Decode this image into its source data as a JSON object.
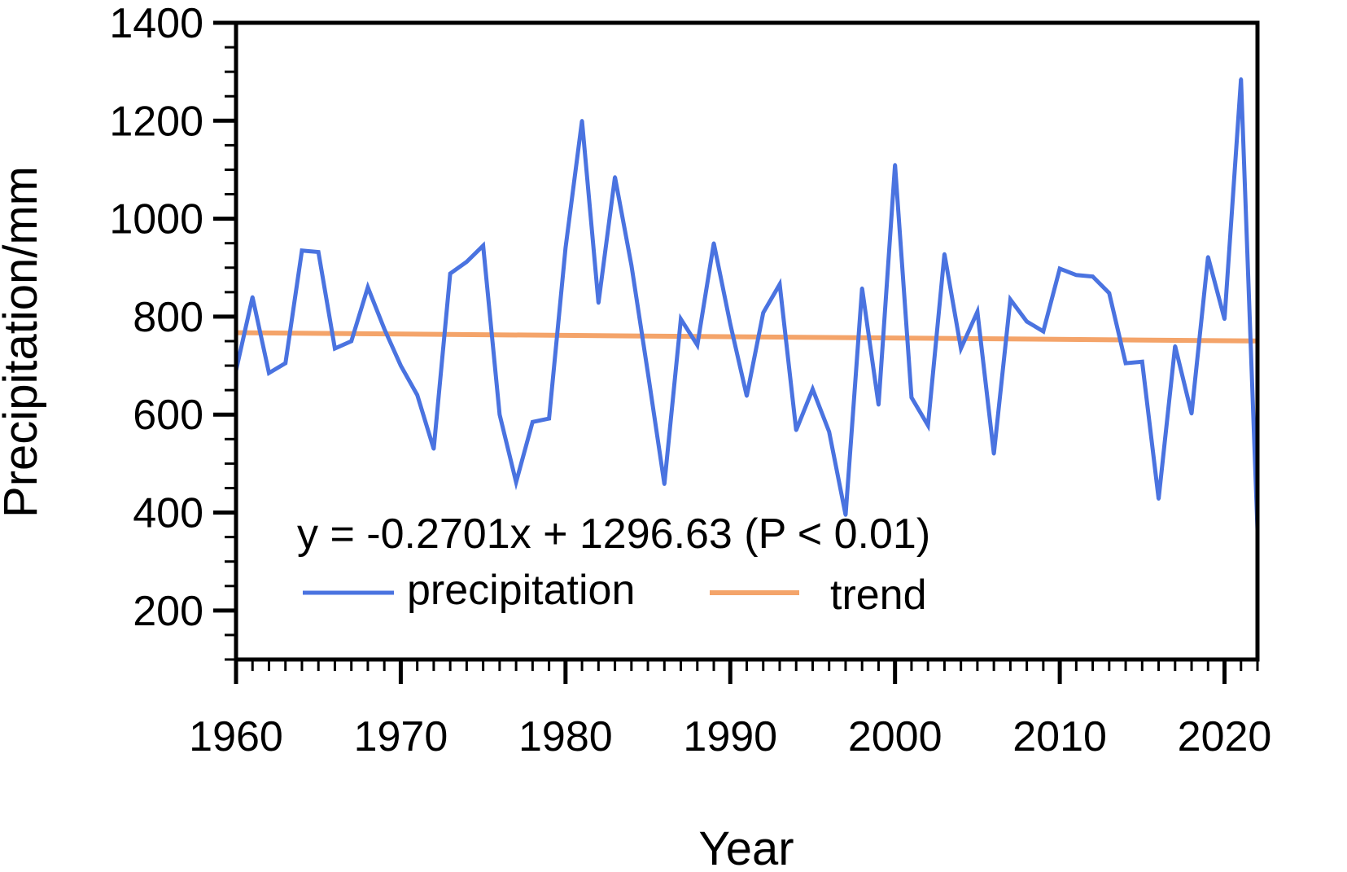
{
  "chart_data": {
    "type": "line",
    "xlabel": "Year",
    "ylabel": "Precipitation/mm",
    "xlim": [
      1960,
      2022
    ],
    "ylim": [
      100,
      1400
    ],
    "xticks": [
      1960,
      1970,
      1980,
      1990,
      2000,
      2010,
      2020
    ],
    "yticks": [
      200,
      400,
      600,
      800,
      1000,
      1200,
      1400
    ],
    "equation": "y = -0.2701x + 1296.63 (P < 0.01)",
    "grid": false,
    "legend_position": "bottom-left inside",
    "colors": {
      "precipitation": "#4a73e0",
      "trend": "#f4a46a"
    },
    "series": [
      {
        "name": "precipitation",
        "x": [
          1960,
          1961,
          1962,
          1963,
          1964,
          1965,
          1966,
          1967,
          1968,
          1969,
          1970,
          1971,
          1972,
          1973,
          1974,
          1975,
          1976,
          1977,
          1978,
          1979,
          1980,
          1981,
          1982,
          1983,
          1984,
          1985,
          1986,
          1987,
          1988,
          1989,
          1990,
          1991,
          1992,
          1993,
          1994,
          1995,
          1996,
          1997,
          1998,
          1999,
          2000,
          2001,
          2002,
          2003,
          2004,
          2005,
          2006,
          2007,
          2008,
          2009,
          2010,
          2011,
          2012,
          2013,
          2014,
          2015,
          2016,
          2017,
          2018,
          2019,
          2020,
          2021,
          2022
        ],
        "values": [
          690,
          840,
          685,
          705,
          935,
          932,
          735,
          750,
          860,
          775,
          700,
          640,
          530,
          888,
          912,
          945,
          600,
          462,
          585,
          592,
          940,
          1200,
          828,
          1085,
          905,
          685,
          458,
          795,
          742,
          950,
          785,
          638,
          808,
          866,
          568,
          652,
          565,
          395,
          858,
          620,
          1110,
          635,
          578,
          928,
          735,
          810,
          520,
          835,
          790,
          770,
          898,
          885,
          882,
          848,
          705,
          708,
          428,
          740,
          602,
          922,
          795,
          1285,
          365
        ]
      },
      {
        "name": "trend",
        "x": [
          1960,
          2022
        ],
        "values": [
          767.2,
          750.4
        ]
      }
    ]
  }
}
